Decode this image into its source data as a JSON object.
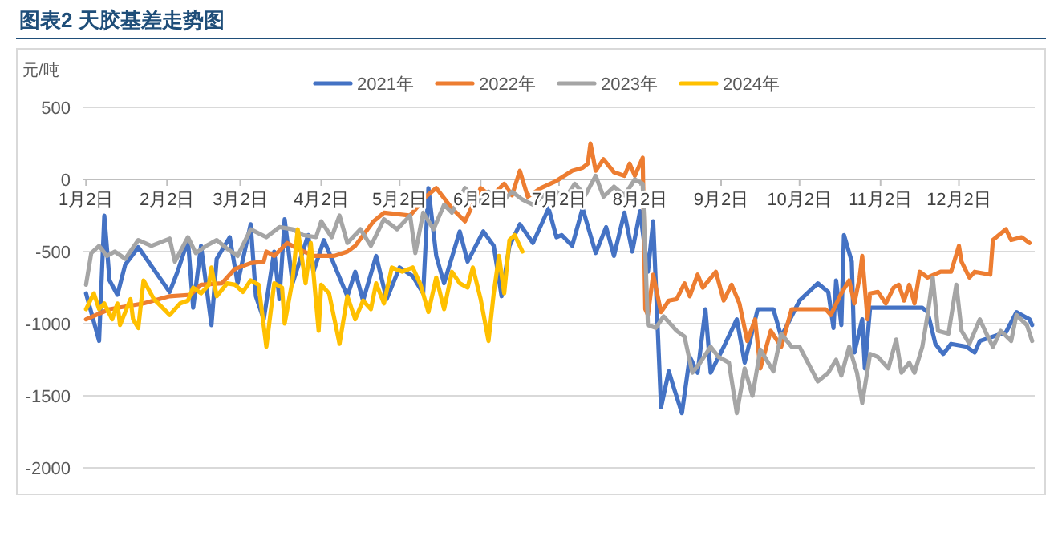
{
  "chart_data": {
    "type": "line",
    "title": "图表2  天胶基差走势图",
    "ylabel": "元/吨",
    "grid": "y",
    "legend": "top",
    "xlim": [
      "--01-01",
      "--12-31"
    ],
    "xticks": [
      {
        "value": "--01-02",
        "label": "1月2日"
      },
      {
        "value": "--02-02",
        "label": "2月2日"
      },
      {
        "value": "--03-02",
        "label": "3月2日"
      },
      {
        "value": "--04-02",
        "label": "4月2日"
      },
      {
        "value": "--05-02",
        "label": "5月2日"
      },
      {
        "value": "--06-02",
        "label": "6月2日"
      },
      {
        "value": "--07-02",
        "label": "7月2日"
      },
      {
        "value": "--08-02",
        "label": "8月2日"
      },
      {
        "value": "--09-02",
        "label": "9月2日"
      },
      {
        "value": "--10-02",
        "label": "10月2日"
      },
      {
        "value": "--11-02",
        "label": "11月2日"
      },
      {
        "value": "--12-02",
        "label": "12月2日"
      }
    ],
    "ylim": [
      -2000,
      500
    ],
    "yticks": [
      -2000,
      -1500,
      -1000,
      -500,
      0,
      500
    ],
    "series": [
      {
        "name": "2021年",
        "color": "#4472c4",
        "x": [
          "--01-02",
          "--01-07",
          "--01-09",
          "--01-11",
          "--01-14",
          "--01-17",
          "--01-22",
          "--02-03",
          "--02-06",
          "--02-10",
          "--02-12",
          "--02-15",
          "--02-19",
          "--02-21",
          "--02-26",
          "--03-01",
          "--03-06",
          "--03-08",
          "--03-11",
          "--03-15",
          "--03-17",
          "--03-19",
          "--03-22",
          "--03-28",
          "--03-30",
          "--04-03",
          "--04-12",
          "--04-15",
          "--04-18",
          "--04-23",
          "--04-27",
          "--05-02",
          "--05-07",
          "--05-11",
          "--05-13",
          "--05-16",
          "--05-19",
          "--05-25",
          "--05-28",
          "--06-03",
          "--06-07",
          "--06-10",
          "--06-13",
          "--06-17",
          "--06-22",
          "--06-28",
          "--07-01",
          "--07-03",
          "--07-07",
          "--07-11",
          "--07-16",
          "--07-20",
          "--07-23",
          "--07-27",
          "--07-30",
          "--08-02",
          "--08-05",
          "--08-07",
          "--08-10",
          "--08-13",
          "--08-15",
          "--08-18",
          "--08-21",
          "--08-24",
          "--08-27",
          "--08-29",
          "--09-03",
          "--09-08",
          "--09-11",
          "--09-16",
          "--09-22",
          "--09-25",
          "--10-02",
          "--10-09",
          "--10-13",
          "--10-15",
          "--10-16",
          "--10-18",
          "--10-19",
          "--10-22",
          "--10-23",
          "--10-26",
          "--10-27",
          "--10-29",
          "--11-18",
          "--11-20",
          "--11-23",
          "--11-26",
          "--11-29",
          "--12-05",
          "--12-08",
          "--12-10",
          "--12-20",
          "--12-24",
          "--12-29",
          "--12-30"
        ],
        "values": [
          -790,
          -1120,
          -250,
          -700,
          -800,
          -590,
          -470,
          -780,
          -640,
          -420,
          -890,
          -460,
          -1010,
          -550,
          -400,
          -720,
          -310,
          -810,
          -970,
          -500,
          -830,
          -275,
          -720,
          -385,
          -640,
          -420,
          -810,
          -640,
          -840,
          -530,
          -830,
          -610,
          -670,
          -790,
          -60,
          -530,
          -720,
          -360,
          -570,
          -360,
          -460,
          -810,
          -460,
          -310,
          -440,
          -200,
          -400,
          -385,
          -460,
          -200,
          -510,
          -330,
          -530,
          -230,
          -500,
          -220,
          -640,
          -290,
          -1580,
          -1330,
          -1450,
          -1620,
          -1230,
          -1340,
          -900,
          -1340,
          -1160,
          -970,
          -1270,
          -900,
          -900,
          -1090,
          -840,
          -720,
          -780,
          -1030,
          -700,
          -1010,
          -385,
          -570,
          -1200,
          -970,
          -1310,
          -890,
          -890,
          -920,
          -1140,
          -1210,
          -1140,
          -1160,
          -1200,
          -1120,
          -1060,
          -920,
          -970,
          -1010
        ]
      },
      {
        "name": "2022年",
        "color": "#ed7d31",
        "x": [
          "--01-02",
          "--01-11",
          "--01-24",
          "--02-03",
          "--02-11",
          "--02-15",
          "--02-23",
          "--02-28",
          "--03-06",
          "--03-11",
          "--03-12",
          "--03-15",
          "--03-20",
          "--03-24",
          "--03-30",
          "--04-07",
          "--04-12",
          "--04-15",
          "--04-22",
          "--04-26",
          "--05-06",
          "--05-12",
          "--05-16",
          "--05-22",
          "--05-27",
          "--06-02",
          "--06-06",
          "--06-11",
          "--06-14",
          "--06-17",
          "--06-20",
          "--06-25",
          "--07-01",
          "--07-07",
          "--07-11",
          "--07-13",
          "--07-14",
          "--07-16",
          "--07-19",
          "--07-23",
          "--07-27",
          "--07-29",
          "--07-31",
          "--08-03",
          "--08-04",
          "--08-05",
          "--08-07",
          "--08-10",
          "--08-13",
          "--08-16",
          "--08-19",
          "--08-21",
          "--08-24",
          "--08-26",
          "--08-31",
          "--09-03",
          "--09-06",
          "--09-09",
          "--09-12",
          "--09-15",
          "--09-17",
          "--09-21",
          "--09-25",
          "--09-29",
          "--10-12",
          "--10-14",
          "--10-18",
          "--10-21",
          "--10-23",
          "--10-25",
          "--10-26",
          "--10-28",
          "--10-29",
          "--11-01",
          "--11-04",
          "--11-07",
          "--11-09",
          "--11-11",
          "--11-13",
          "--11-15",
          "--11-17",
          "--11-20",
          "--11-25",
          "--11-29",
          "--12-02",
          "--12-03",
          "--12-06",
          "--12-08",
          "--12-14",
          "--12-15",
          "--12-20",
          "--12-22",
          "--12-26",
          "--12-29"
        ],
        "values": [
          -970,
          -900,
          -860,
          -810,
          -800,
          -730,
          -720,
          -620,
          -580,
          -570,
          -500,
          -530,
          -440,
          -480,
          -530,
          -530,
          -500,
          -460,
          -290,
          -230,
          -250,
          -120,
          -60,
          -200,
          -290,
          -60,
          -120,
          -30,
          -110,
          60,
          -120,
          -60,
          -10,
          60,
          80,
          110,
          250,
          60,
          140,
          50,
          25,
          110,
          25,
          150,
          -900,
          -940,
          -660,
          -920,
          -840,
          -830,
          -720,
          -810,
          -660,
          -750,
          -640,
          -840,
          -730,
          -860,
          -1120,
          -970,
          -1310,
          -1050,
          -1160,
          -900,
          -900,
          -940,
          -790,
          -700,
          -860,
          -680,
          -530,
          -970,
          -790,
          -780,
          -860,
          -750,
          -730,
          -840,
          -730,
          -860,
          -640,
          -680,
          -640,
          -640,
          -460,
          -570,
          -680,
          -640,
          -660,
          -420,
          -345,
          -420,
          -400,
          -440
        ]
      },
      {
        "name": "2023年",
        "color": "#a5a5a5",
        "x": [
          "--01-02",
          "--01-04",
          "--01-07",
          "--01-10",
          "--01-13",
          "--01-17",
          "--01-22",
          "--01-27",
          "--02-03",
          "--02-05",
          "--02-10",
          "--02-13",
          "--02-17",
          "--02-21",
          "--02-25",
          "--03-01",
          "--03-06",
          "--03-12",
          "--03-17",
          "--03-22",
          "--03-26",
          "--03-31",
          "--04-02",
          "--04-06",
          "--04-09",
          "--04-12",
          "--04-17",
          "--04-21",
          "--04-26",
          "--05-01",
          "--05-06",
          "--05-08",
          "--05-11",
          "--05-15",
          "--05-19",
          "--05-22",
          "--05-27",
          "--06-01",
          "--06-05",
          "--06-10",
          "--06-14",
          "--06-18",
          "--06-22",
          "--06-26",
          "--07-01",
          "--07-04",
          "--07-08",
          "--07-12",
          "--07-16",
          "--07-19",
          "--07-23",
          "--07-27",
          "--07-31",
          "--08-03",
          "--08-05",
          "--08-08",
          "--08-11",
          "--08-16",
          "--08-19",
          "--08-22",
          "--08-25",
          "--08-29",
          "--09-01",
          "--09-05",
          "--09-08",
          "--09-11",
          "--09-14",
          "--09-17",
          "--09-22",
          "--09-25",
          "--09-29",
          "--10-02",
          "--10-09",
          "--10-13",
          "--10-16",
          "--10-18",
          "--10-21",
          "--10-24",
          "--10-26",
          "--10-29",
          "--11-01",
          "--11-05",
          "--11-08",
          "--11-10",
          "--11-13",
          "--11-15",
          "--11-18",
          "--11-20",
          "--11-22",
          "--11-24",
          "--11-28",
          "--12-01",
          "--12-03",
          "--12-06",
          "--12-10",
          "--12-12",
          "--12-15",
          "--12-18",
          "--12-22",
          "--12-24",
          "--12-28",
          "--12-30"
        ],
        "values": [
          -730,
          -510,
          -460,
          -530,
          -500,
          -550,
          -420,
          -460,
          -410,
          -570,
          -400,
          -510,
          -460,
          -420,
          -480,
          -530,
          -345,
          -400,
          -330,
          -345,
          -385,
          -400,
          -290,
          -400,
          -250,
          -440,
          -345,
          -460,
          -275,
          -345,
          -250,
          -510,
          -230,
          -345,
          -175,
          -230,
          -60,
          -160,
          -85,
          -160,
          -85,
          -140,
          -175,
          -110,
          -85,
          -140,
          -30,
          -110,
          25,
          -120,
          -50,
          -110,
          0,
          -30,
          -1010,
          -1030,
          -950,
          -1050,
          -1090,
          -1340,
          -1270,
          -1160,
          -1230,
          -1270,
          -1620,
          -1310,
          -1500,
          -1180,
          -1330,
          -1070,
          -1160,
          -1160,
          -1400,
          -1340,
          -1250,
          -1360,
          -1160,
          -1340,
          -1550,
          -1210,
          -1230,
          -1310,
          -1110,
          -1340,
          -1270,
          -1340,
          -1160,
          -940,
          -680,
          -1050,
          -1070,
          -730,
          -1050,
          -1140,
          -970,
          -1050,
          -1160,
          -1050,
          -1120,
          -940,
          -1010,
          -1120
        ]
      },
      {
        "name": "2024年",
        "color": "#ffc000",
        "x": [
          "--01-02",
          "--01-05",
          "--01-07",
          "--01-09",
          "--01-12",
          "--01-14",
          "--01-15",
          "--01-19",
          "--01-20",
          "--01-22",
          "--01-24",
          "--01-28",
          "--02-03",
          "--02-07",
          "--02-10",
          "--02-12",
          "--02-15",
          "--02-18",
          "--02-19",
          "--02-21",
          "--02-25",
          "--02-28",
          "--03-03",
          "--03-06",
          "--03-09",
          "--03-12",
          "--03-15",
          "--03-18",
          "--03-19",
          "--03-22",
          "--03-24",
          "--03-27",
          "--03-29",
          "--04-01",
          "--04-02",
          "--04-05",
          "--04-09",
          "--04-12",
          "--04-15",
          "--04-18",
          "--04-21",
          "--04-23",
          "--04-26",
          "--04-29",
          "--05-03",
          "--05-07",
          "--05-10",
          "--05-13",
          "--05-16",
          "--05-19",
          "--05-22",
          "--05-25",
          "--05-28",
          "--05-30",
          "--06-02",
          "--06-05",
          "--06-07",
          "--06-09",
          "--06-11",
          "--06-13",
          "--06-15",
          "--06-18"
        ],
        "values": [
          -900,
          -790,
          -900,
          -860,
          -970,
          -860,
          -1010,
          -830,
          -970,
          -1030,
          -700,
          -830,
          -940,
          -860,
          -840,
          -750,
          -790,
          -730,
          -610,
          -810,
          -720,
          -730,
          -780,
          -700,
          -730,
          -1160,
          -720,
          -750,
          -1000,
          -700,
          -345,
          -720,
          -440,
          -1050,
          -730,
          -790,
          -1140,
          -810,
          -970,
          -840,
          -900,
          -720,
          -860,
          -610,
          -640,
          -610,
          -730,
          -920,
          -680,
          -900,
          -640,
          -720,
          -750,
          -610,
          -830,
          -1120,
          -790,
          -530,
          -790,
          -420,
          -385,
          -500
        ]
      }
    ]
  }
}
